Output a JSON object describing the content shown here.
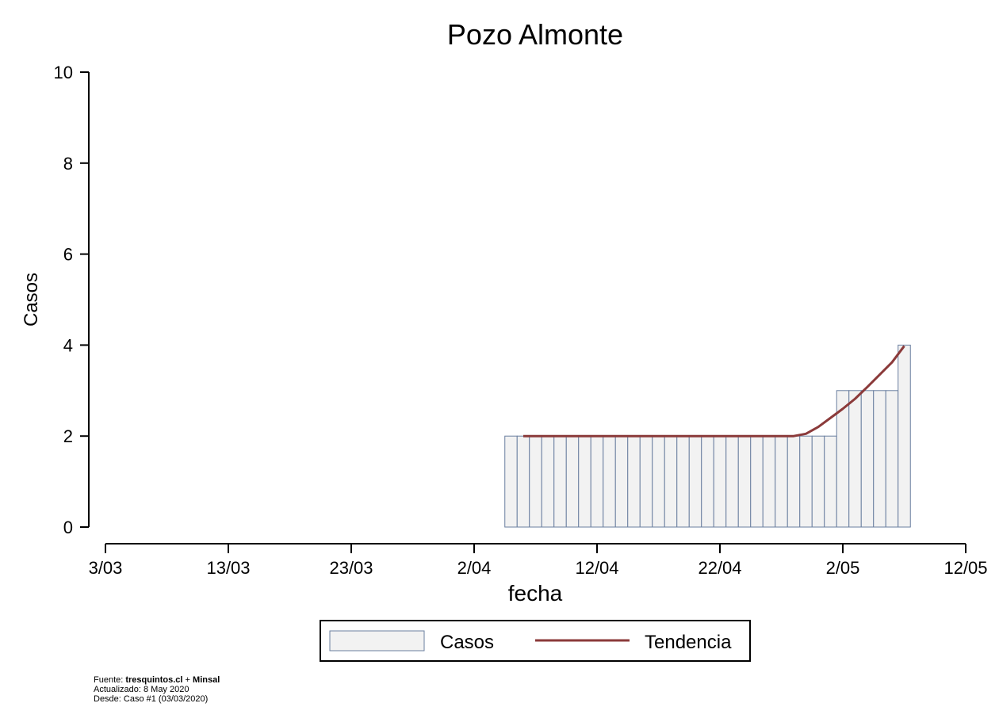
{
  "chart_data": {
    "type": "bar",
    "title": "Pozo Almonte",
    "xlabel": "fecha",
    "ylabel": "Casos",
    "ylim": [
      0,
      10
    ],
    "yticks": [
      0,
      2,
      4,
      6,
      8,
      10
    ],
    "xlim_dates": [
      "2020-03-03",
      "2020-05-12"
    ],
    "xtick_labels": [
      "3/03",
      "13/03",
      "23/03",
      "2/04",
      "12/04",
      "22/04",
      "2/05",
      "12/05"
    ],
    "xtick_dates": [
      "2020-03-03",
      "2020-03-13",
      "2020-03-23",
      "2020-04-02",
      "2020-04-12",
      "2020-04-22",
      "2020-05-02",
      "2020-05-12"
    ],
    "grid": false,
    "legend_position": "bottom",
    "series": [
      {
        "name": "Casos",
        "kind": "bar",
        "color": "#f2f2f2",
        "edge_color": "#6a7f9f",
        "dates": [
          "2020-04-05",
          "2020-04-06",
          "2020-04-07",
          "2020-04-08",
          "2020-04-09",
          "2020-04-10",
          "2020-04-11",
          "2020-04-12",
          "2020-04-13",
          "2020-04-14",
          "2020-04-15",
          "2020-04-16",
          "2020-04-17",
          "2020-04-18",
          "2020-04-19",
          "2020-04-20",
          "2020-04-21",
          "2020-04-22",
          "2020-04-23",
          "2020-04-24",
          "2020-04-25",
          "2020-04-26",
          "2020-04-27",
          "2020-04-28",
          "2020-04-29",
          "2020-04-30",
          "2020-05-01",
          "2020-05-02",
          "2020-05-03",
          "2020-05-04",
          "2020-05-05",
          "2020-05-06",
          "2020-05-07"
        ],
        "values": [
          2,
          2,
          2,
          2,
          2,
          2,
          2,
          2,
          2,
          2,
          2,
          2,
          2,
          2,
          2,
          2,
          2,
          2,
          2,
          2,
          2,
          2,
          2,
          2,
          2,
          2,
          2,
          3,
          3,
          3,
          3,
          3,
          4
        ]
      },
      {
        "name": "Tendencia",
        "kind": "line",
        "color": "#8b3a3a",
        "dates": [
          "2020-04-06",
          "2020-04-10",
          "2020-04-15",
          "2020-04-20",
          "2020-04-25",
          "2020-04-28",
          "2020-04-29",
          "2020-04-30",
          "2020-05-01",
          "2020-05-02",
          "2020-05-03",
          "2020-05-04",
          "2020-05-05",
          "2020-05-06",
          "2020-05-07"
        ],
        "values": [
          2,
          2,
          2,
          2,
          2,
          2,
          2.05,
          2.2,
          2.4,
          2.6,
          2.82,
          3.08,
          3.35,
          3.62,
          3.98
        ]
      }
    ]
  },
  "legend": {
    "bar_label": "Casos",
    "line_label": "Tendencia"
  },
  "footer": {
    "source_prefix": "Fuente: ",
    "source_site": "tresquintos.cl",
    "source_plus": " + ",
    "source_org": "Minsal",
    "updated": "Actualizado: 8 May 2020",
    "since": "Desde: Caso #1  (03/03/2020)"
  }
}
